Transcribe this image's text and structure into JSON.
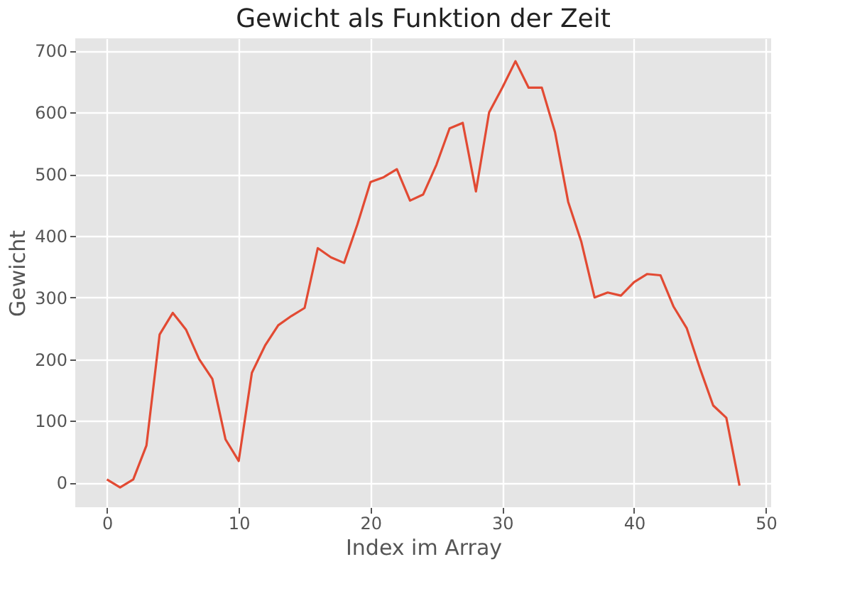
{
  "chart_data": {
    "type": "line",
    "title": "Gewicht als Funktion der Zeit",
    "xlabel": "Index im Array",
    "ylabel": "Gewicht",
    "x": [
      0,
      1,
      2,
      3,
      4,
      5,
      6,
      7,
      8,
      9,
      10,
      11,
      12,
      13,
      14,
      15,
      16,
      17,
      18,
      19,
      20,
      21,
      22,
      23,
      24,
      25,
      26,
      27,
      28,
      29,
      30,
      31,
      32,
      33,
      34,
      35,
      36,
      37,
      38,
      39,
      40,
      41,
      42,
      43,
      44,
      45,
      46,
      47,
      48
    ],
    "series": [
      {
        "color": "#e24a33",
        "values": [
          5,
          -8,
          5,
          60,
          240,
          275,
          248,
          200,
          168,
          70,
          35,
          178,
          222,
          255,
          270,
          283,
          380,
          365,
          356,
          418,
          487,
          495,
          508,
          457,
          467,
          515,
          574,
          583,
          472,
          600,
          640,
          683,
          640,
          640,
          568,
          455,
          390,
          300,
          308,
          303,
          325,
          338,
          336,
          285,
          250,
          185,
          125,
          105,
          -5
        ]
      }
    ],
    "xlim": [
      -2.4,
      50.4
    ],
    "ylim": [
      -40,
      720
    ],
    "xticks": [
      0,
      10,
      20,
      30,
      40,
      50
    ],
    "yticks": [
      0,
      100,
      200,
      300,
      400,
      500,
      600,
      700
    ],
    "grid": true
  }
}
